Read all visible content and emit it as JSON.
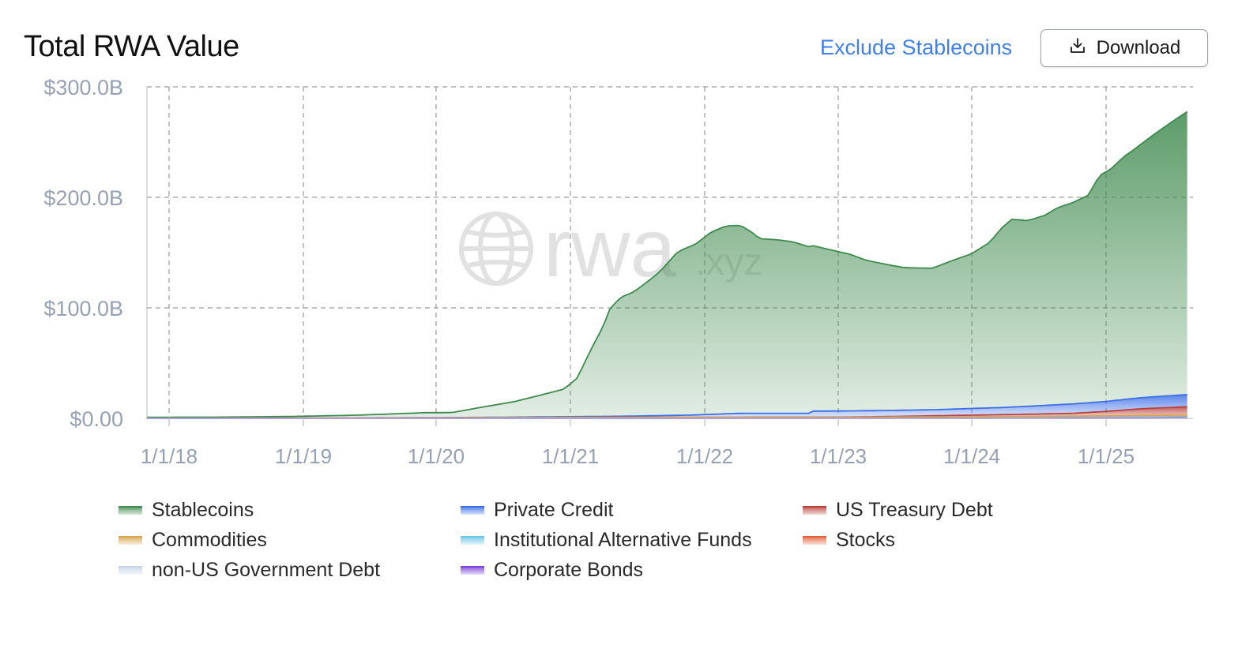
{
  "header": {
    "title": "Total RWA Value",
    "exclude_link": "Exclude Stablecoins",
    "download_label": "Download"
  },
  "chart_data": {
    "type": "area",
    "stacked": true,
    "title": "Total RWA Value",
    "xlabel": "",
    "ylabel": "",
    "ylim": [
      0,
      300
    ],
    "y_unit": "B USD",
    "y_ticks": [
      "$0.00",
      "$100.0B",
      "$200.0B",
      "$300.0B"
    ],
    "x_ticks": [
      "1/1/18",
      "1/1/19",
      "1/1/20",
      "1/1/21",
      "1/1/22",
      "1/1/23",
      "1/1/24",
      "1/1/25"
    ],
    "grid": true,
    "watermark": "rwa.xyz",
    "legend_position": "bottom",
    "series": [
      {
        "name": "Stablecoins",
        "color": "#3f8a4e",
        "points": [
          [
            "2017-11-01",
            1
          ],
          [
            "2018-06-01",
            1
          ],
          [
            "2018-12-01",
            1.5
          ],
          [
            "2019-06-01",
            2.5
          ],
          [
            "2019-12-01",
            4.5
          ],
          [
            "2020-02-15",
            4.5
          ],
          [
            "2020-05-01",
            9
          ],
          [
            "2020-08-01",
            14
          ],
          [
            "2020-10-15",
            20
          ],
          [
            "2020-12-15",
            25
          ],
          [
            "2021-01-20",
            35
          ],
          [
            "2021-02-25",
            60
          ],
          [
            "2021-03-30",
            80
          ],
          [
            "2021-04-20",
            98
          ],
          [
            "2021-05-20",
            108
          ],
          [
            "2021-06-20",
            112
          ],
          [
            "2021-07-25",
            120
          ],
          [
            "2021-09-01",
            130
          ],
          [
            "2021-10-20",
            148
          ],
          [
            "2021-12-10",
            155
          ],
          [
            "2022-01-20",
            165
          ],
          [
            "2022-03-01",
            170
          ],
          [
            "2022-04-10",
            170
          ],
          [
            "2022-05-10",
            164
          ],
          [
            "2022-06-01",
            158
          ],
          [
            "2022-07-20",
            157
          ],
          [
            "2022-09-01",
            155
          ],
          [
            "2022-10-20",
            150
          ],
          [
            "2022-12-10",
            146
          ],
          [
            "2023-02-01",
            142
          ],
          [
            "2023-03-20",
            136
          ],
          [
            "2023-05-01",
            133
          ],
          [
            "2023-07-01",
            129
          ],
          [
            "2023-09-15",
            128
          ],
          [
            "2023-11-15",
            135
          ],
          [
            "2024-01-01",
            140
          ],
          [
            "2024-02-20",
            150
          ],
          [
            "2024-03-25",
            163
          ],
          [
            "2024-04-20",
            170
          ],
          [
            "2024-06-01",
            168
          ],
          [
            "2024-07-20",
            172
          ],
          [
            "2024-08-20",
            178
          ],
          [
            "2024-10-01",
            182
          ],
          [
            "2024-11-15",
            188
          ],
          [
            "2024-12-15",
            205
          ],
          [
            "2025-01-15",
            210
          ],
          [
            "2025-02-20",
            220
          ],
          [
            "2025-04-01",
            228
          ],
          [
            "2025-05-15",
            238
          ],
          [
            "2025-07-01",
            248
          ],
          [
            "2025-08-10",
            256
          ]
        ]
      },
      {
        "name": "Private Credit",
        "color": "#3d6fe8",
        "points": [
          [
            "2017-11-01",
            0
          ],
          [
            "2019-01-01",
            0
          ],
          [
            "2020-06-01",
            0.3
          ],
          [
            "2021-01-01",
            0.6
          ],
          [
            "2021-06-01",
            1
          ],
          [
            "2021-12-01",
            2
          ],
          [
            "2022-04-01",
            3.5
          ],
          [
            "2022-10-20",
            3.5
          ],
          [
            "2022-10-25",
            5.5
          ],
          [
            "2023-04-01",
            5.5
          ],
          [
            "2023-10-01",
            5.5
          ],
          [
            "2024-04-01",
            6.5
          ],
          [
            "2024-10-01",
            8.5
          ],
          [
            "2025-01-01",
            9
          ],
          [
            "2025-04-01",
            10
          ],
          [
            "2025-08-10",
            11
          ]
        ]
      },
      {
        "name": "US Treasury Debt",
        "color": "#b8423a",
        "points": [
          [
            "2017-11-01",
            0
          ],
          [
            "2023-01-01",
            0.1
          ],
          [
            "2023-06-01",
            0.5
          ],
          [
            "2024-01-01",
            1.5
          ],
          [
            "2024-04-01",
            1.8
          ],
          [
            "2024-10-01",
            2.5
          ],
          [
            "2025-01-01",
            4
          ],
          [
            "2025-04-01",
            6
          ],
          [
            "2025-08-10",
            7.5
          ]
        ]
      },
      {
        "name": "Commodities",
        "color": "#d8a451",
        "points": [
          [
            "2017-11-01",
            0
          ],
          [
            "2020-01-01",
            0.3
          ],
          [
            "2021-01-01",
            0.7
          ],
          [
            "2023-01-01",
            0.8
          ],
          [
            "2024-01-01",
            1
          ],
          [
            "2025-01-01",
            1.2
          ],
          [
            "2025-08-10",
            1.5
          ]
        ]
      },
      {
        "name": "Institutional Alternative Funds",
        "color": "#6cc6e6",
        "points": [
          [
            "2017-11-01",
            0
          ],
          [
            "2023-01-01",
            0.05
          ],
          [
            "2024-06-01",
            0.3
          ],
          [
            "2025-08-10",
            0.6
          ]
        ]
      },
      {
        "name": "Stocks",
        "color": "#e1623b",
        "points": [
          [
            "2017-11-01",
            0
          ],
          [
            "2024-06-01",
            0.05
          ],
          [
            "2025-08-10",
            0.3
          ]
        ]
      },
      {
        "name": "non-US Government Debt",
        "color": "#c7d3e6",
        "points": [
          [
            "2017-11-01",
            0
          ],
          [
            "2024-01-01",
            0.1
          ],
          [
            "2025-08-10",
            0.4
          ]
        ]
      },
      {
        "name": "Corporate Bonds",
        "color": "#7a43d8",
        "points": [
          [
            "2017-11-01",
            0
          ],
          [
            "2024-01-01",
            0.05
          ],
          [
            "2025-08-10",
            0.2
          ]
        ]
      }
    ]
  }
}
